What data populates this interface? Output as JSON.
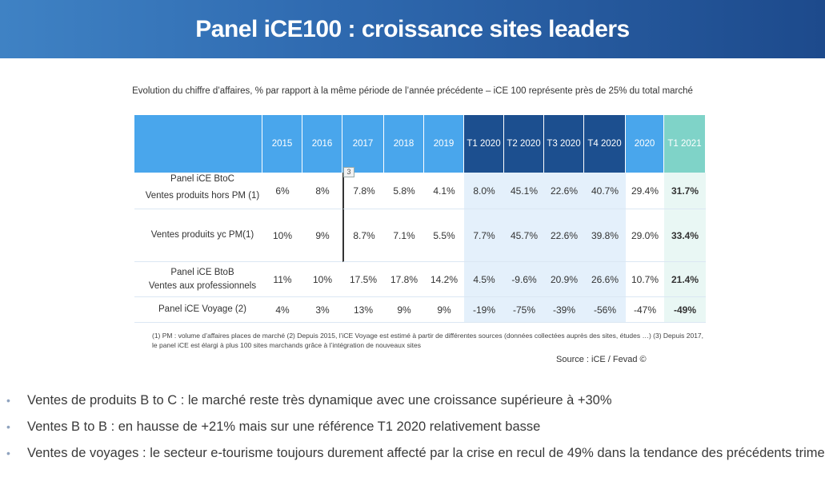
{
  "title": "Panel iCE100 : croissance sites leaders",
  "subtitle": "Evolution du chiffre d’affaires, % par rapport à la même période de l’année précédente – iCE 100 représente près de 25% du total marché",
  "table": {
    "columns": [
      "2015",
      "2016",
      "2017",
      "2018",
      "2019",
      "T1 2020",
      "T2 2020",
      "T3 2020",
      "T4 2020",
      "2020",
      "T1 2021"
    ],
    "marker": "3",
    "rows": [
      {
        "group": "Panel iCE BtoC",
        "label": "Ventes produits hors PM (1)",
        "values": [
          "6%",
          "8%",
          "7.8%",
          "5.8%",
          "4.1%",
          "8.0%",
          "45.1%",
          "22.6%",
          "40.7%",
          "29.4%",
          "31.7%"
        ]
      },
      {
        "group": "",
        "label": "Ventes produits yc PM(1)",
        "values": [
          "10%",
          "9%",
          "8.7%",
          "7.1%",
          "5.5%",
          "7.7%",
          "45.7%",
          "22.6%",
          "39.8%",
          "29.0%",
          "33.4%"
        ]
      },
      {
        "group": "Panel iCE BtoB",
        "label": "Ventes aux professionnels",
        "values": [
          "11%",
          "10%",
          "17.5%",
          "17.8%",
          "14.2%",
          "4.5%",
          "-9.6%",
          "20.9%",
          "26.6%",
          "10.7%",
          "21.4%"
        ]
      },
      {
        "group": "",
        "label": "Panel iCE Voyage (2)",
        "values": [
          "4%",
          "3%",
          "13%",
          "9%",
          "9%",
          "-19%",
          "-75%",
          "-39%",
          "-56%",
          "-47%",
          "-49%"
        ]
      }
    ]
  },
  "notes": "(1) PM : volume d’affaires places de marché (2) Depuis 2015, l’iCE Voyage est estimé à partir de différentes sources (données collectées auprès des sites, études …) (3) Depuis 2017, le panel iCE est élargi à plus 100 sites marchands grâce à l’intégration de nouveaux sites",
  "source": "Source : iCE / Fevad ©",
  "bullets": [
    "Ventes de produits B to C : le marché reste très dynamique avec une croissance supérieure à +30%",
    "Ventes B to B :  en hausse de +21% mais sur une référence T1 2020 relativement basse",
    "Ventes de voyages : le secteur e-tourisme toujours durement affecté par la crise en recul de 49% dans la tendance des précédents trimestres"
  ],
  "bullet_symbol": "•"
}
